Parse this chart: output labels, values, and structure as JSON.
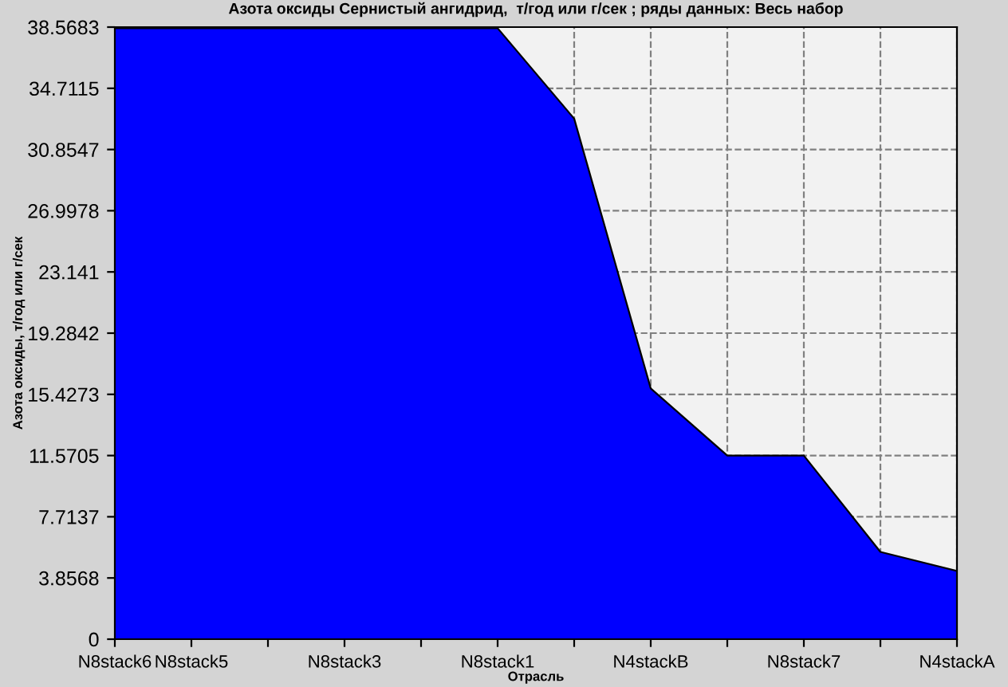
{
  "chart_data": {
    "type": "area",
    "title": "Азота оксиды Сернистый ангидрид,  т/год или г/сек ; ряды данных: Весь набор",
    "xlabel": "Отрасль",
    "ylabel": "Азота оксиды, т/год или г/сек",
    "categories": [
      "N8stack6",
      "N8stack5",
      null,
      "N8stack3",
      null,
      "N8stack1",
      null,
      "N4stackB",
      null,
      "N8stack7",
      null,
      "N4stackA"
    ],
    "series": [
      {
        "color": "#0000ff",
        "values": [
          38.5,
          38.5,
          38.5,
          38.5,
          38.5,
          38.5,
          32.8,
          15.8,
          11.57,
          11.57,
          5.5,
          4.3
        ]
      }
    ],
    "ylim": [
      0,
      38.5683
    ],
    "yticks": [
      0,
      3.8568,
      7.7137,
      11.5705,
      15.4273,
      19.2842,
      23.141,
      26.9978,
      30.8547,
      34.7115,
      38.5683
    ],
    "grid": true,
    "legend": false
  }
}
